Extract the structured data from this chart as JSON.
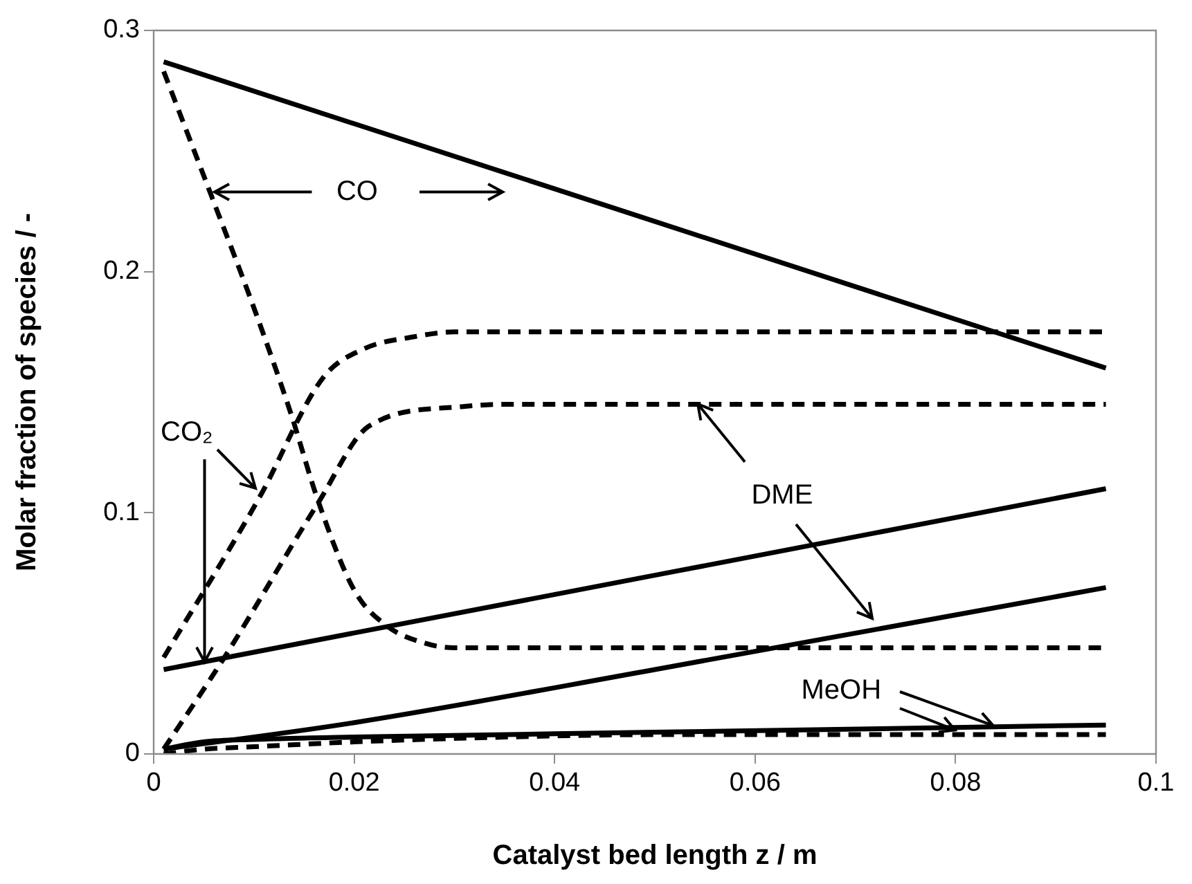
{
  "chart_data": {
    "type": "line",
    "xlabel": "Catalyst bed length z / m",
    "ylabel": "Molar fraction of species / -",
    "xlim": [
      0,
      0.1
    ],
    "xticks": [
      0,
      0.02,
      0.04,
      0.06,
      0.08,
      0.1
    ],
    "ylim": [
      0,
      0.3
    ],
    "yticks": [
      0,
      0.1,
      0.2,
      0.3
    ],
    "grid": false,
    "legend": false,
    "marker": "none",
    "series": [
      {
        "color": "#000000",
        "line_style": "solid",
        "x": [
          0.001,
          0.095
        ],
        "values": [
          0.287,
          0.16
        ]
      },
      {
        "color": "#000000",
        "line_style": "solid",
        "x": [
          0.001,
          0.095
        ],
        "values": [
          0.035,
          0.11
        ]
      },
      {
        "color": "#000000",
        "line_style": "solid",
        "x": [
          0.001,
          0.02,
          0.05,
          0.095
        ],
        "values": [
          0.002,
          0.013,
          0.035,
          0.069
        ]
      },
      {
        "color": "#000000",
        "line_style": "solid",
        "x": [
          0.001,
          0.005,
          0.01,
          0.02,
          0.05,
          0.095
        ],
        "values": [
          0.002,
          0.005,
          0.006,
          0.007,
          0.009,
          0.012
        ]
      },
      {
        "color": "#000000",
        "line_style": "dashed",
        "x": [
          0.001,
          0.0058,
          0.01,
          0.0137,
          0.0164,
          0.02,
          0.0233,
          0.027,
          0.03,
          0.095
        ],
        "values": [
          0.283,
          0.231,
          0.185,
          0.141,
          0.105,
          0.068,
          0.053,
          0.046,
          0.044,
          0.044
        ]
      },
      {
        "color": "#000000",
        "line_style": "dashed",
        "x": [
          0.001,
          0.0105,
          0.0169,
          0.021,
          0.026,
          0.03,
          0.095
        ],
        "values": [
          0.04,
          0.106,
          0.156,
          0.168,
          0.173,
          0.175,
          0.175
        ]
      },
      {
        "color": "#000000",
        "line_style": "dashed",
        "x": [
          0.001,
          0.0072,
          0.0164,
          0.0215,
          0.0307,
          0.035,
          0.095
        ],
        "values": [
          0.002,
          0.041,
          0.104,
          0.136,
          0.144,
          0.145,
          0.145
        ]
      },
      {
        "color": "#000000",
        "line_style": "dashed",
        "x": [
          0.001,
          0.005,
          0.01,
          0.02,
          0.035,
          0.05,
          0.095
        ],
        "values": [
          0,
          0.002,
          0.003,
          0.005,
          0.007,
          0.008,
          0.008
        ]
      }
    ],
    "annotations": [
      "CO",
      {
        "text": "CO₂",
        "x": 0.0051,
        "y": 0.038
      },
      {
        "text": "DME",
        "x": 0.0543,
        "y": 0.145
      },
      {
        "text": "MeOH",
        "x": 0.0838,
        "y": 0.012
      }
    ]
  }
}
